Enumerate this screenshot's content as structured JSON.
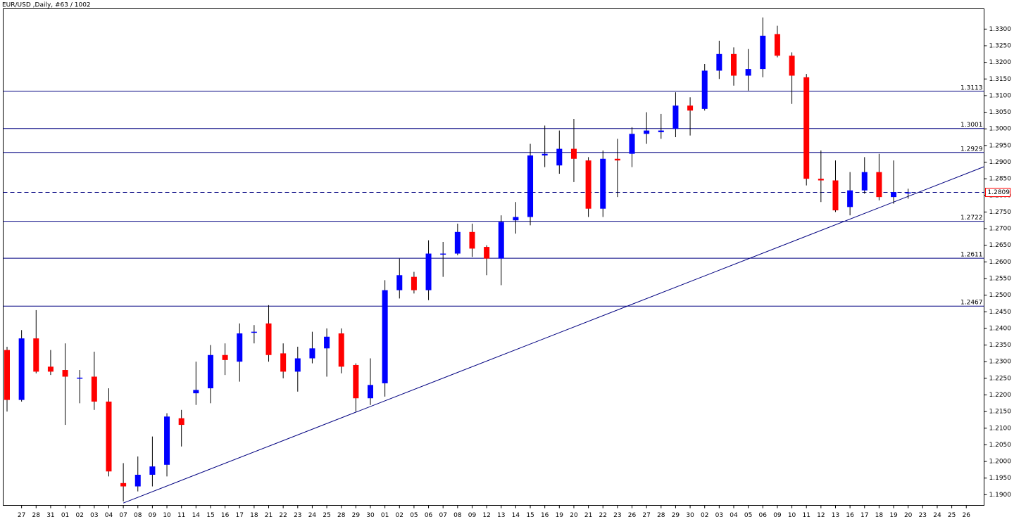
{
  "chart_data": {
    "type": "candlestick",
    "title": "EUR/USD ,Daily, #63 / 1002",
    "categories": [
      null,
      "27",
      "28",
      "31",
      "01",
      "02",
      "03",
      "04",
      "07",
      "08",
      "09",
      "10",
      "11",
      "14",
      "15",
      "16",
      "17",
      "18",
      "21",
      "22",
      "23",
      "24",
      "25",
      "28",
      "29",
      "30",
      "01",
      "02",
      "05",
      "06",
      "07",
      "08",
      "09",
      "12",
      "13",
      "14",
      "15",
      "16",
      "19",
      "20",
      "21",
      "22",
      "23",
      "26",
      "27",
      "28",
      "29",
      "30",
      "02",
      "03",
      "04",
      "05",
      "06",
      "09",
      "10",
      "11",
      "12",
      "13",
      "16",
      "17",
      "18",
      "19",
      "20",
      "23",
      "24",
      "25",
      "26"
    ],
    "open": [
      1.2335,
      1.2185,
      1.237,
      1.2285,
      1.2275,
      1.225,
      1.2255,
      1.218,
      1.1935,
      1.1925,
      1.196,
      1.199,
      1.213,
      1.2205,
      1.222,
      1.232,
      1.23,
      1.2388,
      1.2415,
      1.2325,
      1.227,
      1.231,
      1.234,
      1.2385,
      1.229,
      1.219,
      1.2235,
      1.2515,
      1.2555,
      1.2515,
      1.2623,
      1.2625,
      1.269,
      1.2645,
      1.261,
      1.2725,
      1.2735,
      1.292,
      1.289,
      1.294,
      1.2905,
      1.276,
      1.291,
      1.2925,
      1.2985,
      1.299,
      1.3,
      1.307,
      1.306,
      1.3175,
      1.3225,
      1.316,
      1.318,
      1.3285,
      1.322,
      1.3155,
      1.285,
      1.2845,
      1.2765,
      1.2815,
      1.287,
      1.2795,
      1.2809,
      null,
      null,
      null,
      null
    ],
    "high": [
      1.2345,
      1.2395,
      1.2455,
      1.2335,
      1.2355,
      1.2275,
      1.233,
      1.222,
      1.1995,
      1.2015,
      1.2075,
      1.2145,
      1.2155,
      1.23,
      1.235,
      1.2355,
      1.2415,
      1.241,
      1.247,
      1.2355,
      1.2345,
      1.239,
      1.24,
      1.24,
      1.2295,
      1.231,
      1.2545,
      1.261,
      1.257,
      1.2665,
      1.266,
      1.2715,
      1.2715,
      1.265,
      1.274,
      1.278,
      1.2955,
      1.301,
      1.2995,
      1.303,
      1.2915,
      1.2935,
      1.297,
      1.3005,
      1.305,
      1.3045,
      1.311,
      1.3095,
      1.3195,
      1.3265,
      1.3245,
      1.324,
      1.3335,
      1.331,
      1.323,
      1.3165,
      1.2935,
      1.2905,
      1.287,
      1.2915,
      1.2925,
      1.2905,
      1.282,
      null,
      null,
      null,
      null
    ],
    "low": [
      1.215,
      1.218,
      1.2265,
      1.226,
      1.211,
      1.2175,
      1.2155,
      1.1955,
      1.188,
      1.191,
      1.1925,
      1.1955,
      1.2045,
      1.217,
      1.2175,
      1.226,
      1.224,
      1.2355,
      1.23,
      1.225,
      1.221,
      1.2295,
      1.2255,
      1.2265,
      1.215,
      1.217,
      1.2195,
      1.249,
      1.2505,
      1.2485,
      1.2555,
      1.262,
      1.2615,
      1.256,
      1.253,
      1.2685,
      1.271,
      1.2885,
      1.2865,
      1.284,
      1.2735,
      1.2735,
      1.2795,
      1.2885,
      1.2955,
      1.297,
      1.2975,
      1.298,
      1.3055,
      1.315,
      1.313,
      1.3115,
      1.3155,
      1.3215,
      1.3075,
      1.283,
      1.278,
      1.275,
      1.274,
      1.2805,
      1.2785,
      1.2775,
      1.279,
      null,
      null,
      null,
      null
    ],
    "close": [
      1.2185,
      1.237,
      1.227,
      1.227,
      1.2255,
      1.2252,
      1.218,
      1.197,
      1.1925,
      1.196,
      1.1985,
      1.2135,
      1.211,
      1.2215,
      1.232,
      1.2305,
      1.2385,
      1.239,
      1.232,
      1.227,
      1.231,
      1.234,
      1.2375,
      1.2285,
      1.219,
      1.223,
      1.2515,
      1.256,
      1.2515,
      1.2625,
      1.2625,
      1.269,
      1.264,
      1.261,
      1.272,
      1.2735,
      1.292,
      1.2925,
      1.294,
      1.291,
      1.276,
      1.291,
      1.2905,
      1.2985,
      1.2995,
      1.2995,
      1.307,
      1.3055,
      1.3175,
      1.3225,
      1.316,
      1.318,
      1.328,
      1.322,
      1.316,
      1.285,
      1.2845,
      1.2755,
      1.2815,
      1.287,
      1.2795,
      1.281,
      1.2809,
      null,
      null,
      null,
      null
    ],
    "up_color": "#0000ff",
    "down_color": "#ff0000",
    "levels": [
      1.3113,
      1.3001,
      1.2929,
      1.2722,
      1.2611,
      1.2467
    ],
    "level_color": "#000080",
    "current_price": 1.2809,
    "trendline": {
      "x": [
        8,
        62
      ],
      "y": [
        1.1875,
        1.2797
      ]
    },
    "ylim": [
      1.1868,
      1.3361
    ],
    "yticks": [
      {
        "value": 1.19,
        "label": "1.1900"
      },
      {
        "value": 1.195,
        "label": "1.1950"
      },
      {
        "value": 1.2,
        "label": "1.2000"
      },
      {
        "value": 1.205,
        "label": "1.2050"
      },
      {
        "value": 1.21,
        "label": "1.2100"
      },
      {
        "value": 1.215,
        "label": "1.2150"
      },
      {
        "value": 1.22,
        "label": "1.2200"
      },
      {
        "value": 1.225,
        "label": "1.2250"
      },
      {
        "value": 1.23,
        "label": "1.2300"
      },
      {
        "value": 1.235,
        "label": "1.2350"
      },
      {
        "value": 1.24,
        "label": "1.2400"
      },
      {
        "value": 1.245,
        "label": "1.2450"
      },
      {
        "value": 1.25,
        "label": "1.2500"
      },
      {
        "value": 1.255,
        "label": "1.2550"
      },
      {
        "value": 1.26,
        "label": "1.2600"
      },
      {
        "value": 1.265,
        "label": "1.2650"
      },
      {
        "value": 1.27,
        "label": "1.2700"
      },
      {
        "value": 1.275,
        "label": "1.2750"
      },
      {
        "value": 1.28,
        "label": "1.2800"
      },
      {
        "value": 1.285,
        "label": "1.2850"
      },
      {
        "value": 1.29,
        "label": "1.2900"
      },
      {
        "value": 1.295,
        "label": "1.2950"
      },
      {
        "value": 1.3,
        "label": "1.3000"
      },
      {
        "value": 1.305,
        "label": "1.3050"
      },
      {
        "value": 1.31,
        "label": "1.3100"
      },
      {
        "value": 1.315,
        "label": "1.3150"
      },
      {
        "value": 1.32,
        "label": "1.3200"
      },
      {
        "value": 1.325,
        "label": "1.3250"
      },
      {
        "value": 1.33,
        "label": "1.3300"
      }
    ]
  }
}
